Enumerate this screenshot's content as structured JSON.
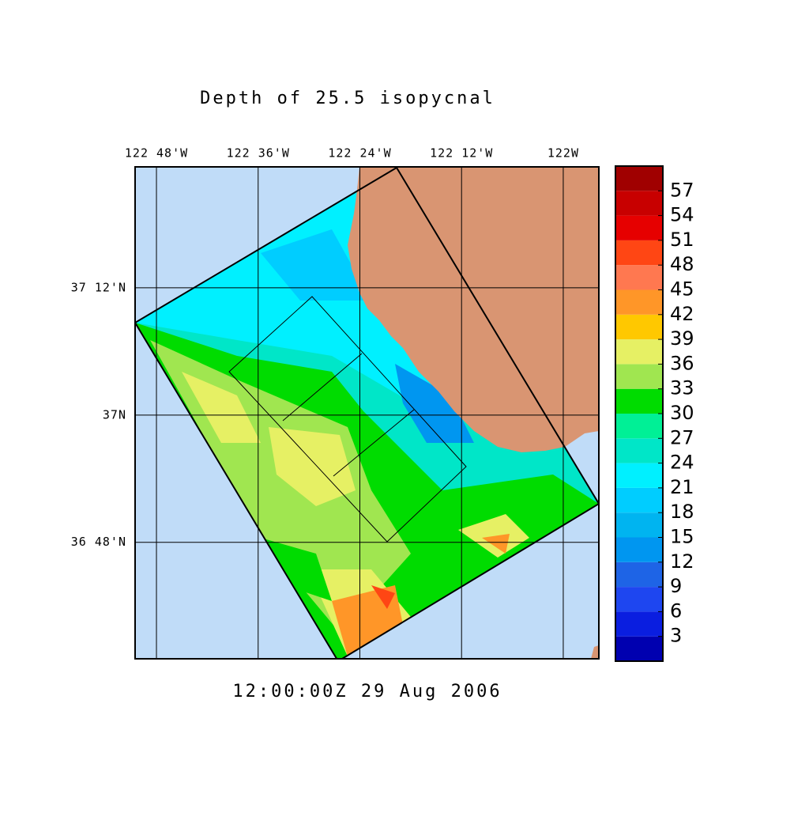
{
  "chart_data": {
    "type": "map",
    "title": "Depth of 25.5 isopycnal",
    "subtitle": "12:00:00Z  29 Aug 2006",
    "xlim": [
      -122.842,
      -121.93
    ],
    "ylim": [
      36.617,
      37.39
    ],
    "xticks": [
      {
        "value": -122.8,
        "label": "122 48'W"
      },
      {
        "value": -122.6,
        "label": "122 36'W"
      },
      {
        "value": -122.4,
        "label": "122 24'W"
      },
      {
        "value": -122.2,
        "label": "122 12'W"
      },
      {
        "value": -122.0,
        "label": "122W"
      }
    ],
    "yticks": [
      {
        "value": 37.2,
        "label": "37 12'N"
      },
      {
        "value": 37.0,
        "label": "37N"
      },
      {
        "value": 36.8,
        "label": "36 48'N"
      }
    ],
    "grid": true,
    "colorbar": {
      "bins": [
        0,
        3,
        6,
        9,
        12,
        15,
        18,
        21,
        24,
        27,
        30,
        33,
        36,
        39,
        42,
        45,
        48,
        51,
        54,
        57,
        60
      ],
      "colors": [
        "#0000b0",
        "#0a1ee0",
        "#1e46f0",
        "#1e64e6",
        "#0096f0",
        "#00b4f0",
        "#00cdff",
        "#00f0ff",
        "#00e6c8",
        "#00f096",
        "#00dc00",
        "#a0e650",
        "#e6f064",
        "#ffc800",
        "#ff9628",
        "#ff7850",
        "#ff4614",
        "#e60000",
        "#c80000",
        "#a00000"
      ],
      "ticks": [
        3,
        6,
        9,
        12,
        15,
        18,
        21,
        24,
        27,
        30,
        33,
        36,
        39,
        42,
        45,
        48,
        51,
        54,
        57
      ]
    }
  }
}
